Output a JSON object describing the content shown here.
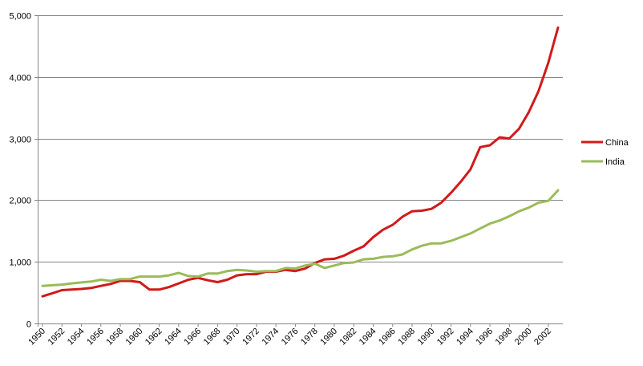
{
  "chart_data": {
    "type": "line",
    "title": "",
    "xlabel": "",
    "ylabel": "",
    "ylim": [
      0,
      5000
    ],
    "y_ticks": [
      0,
      1000,
      2000,
      3000,
      4000,
      5000
    ],
    "y_tick_labels": [
      "0",
      "1,000",
      "2,000",
      "3,000",
      "4,000",
      "5,000"
    ],
    "x_tick_labels": [
      "1950",
      "1952",
      "1954",
      "1956",
      "1958",
      "1960",
      "1962",
      "1964",
      "1966",
      "1968",
      "1970",
      "1972",
      "1974",
      "1976",
      "1978",
      "1980",
      "1982",
      "1984",
      "1986",
      "1988",
      "1990",
      "1992",
      "1994",
      "1996",
      "1998",
      "2000",
      "2002"
    ],
    "grid": "horizontal",
    "legend_position": "right",
    "x": [
      1950,
      1951,
      1952,
      1953,
      1954,
      1955,
      1956,
      1957,
      1958,
      1959,
      1960,
      1961,
      1962,
      1963,
      1964,
      1965,
      1966,
      1967,
      1968,
      1969,
      1970,
      1971,
      1972,
      1973,
      1974,
      1975,
      1976,
      1977,
      1978,
      1979,
      1980,
      1981,
      1982,
      1983,
      1984,
      1985,
      1986,
      1987,
      1988,
      1989,
      1990,
      1991,
      1992,
      1993,
      1994,
      1995,
      1996,
      1997,
      1998,
      1999,
      2000,
      2001,
      2002,
      2003
    ],
    "series": [
      {
        "name": "China",
        "color": "#d11a1a",
        "values": [
          440,
          490,
          540,
          550,
          560,
          575,
          610,
          640,
          690,
          690,
          670,
          550,
          550,
          590,
          650,
          710,
          740,
          700,
          670,
          710,
          780,
          800,
          800,
          840,
          840,
          870,
          850,
          890,
          980,
          1040,
          1050,
          1100,
          1180,
          1250,
          1400,
          1520,
          1600,
          1730,
          1820,
          1830,
          1860,
          1960,
          2120,
          2300,
          2500,
          2860,
          2890,
          3020,
          3000,
          3160,
          3430,
          3770,
          4230,
          4800
        ]
      },
      {
        "name": "India",
        "color": "#9bbb59",
        "values": [
          610,
          620,
          630,
          650,
          665,
          680,
          710,
          690,
          720,
          720,
          760,
          760,
          760,
          780,
          820,
          770,
          760,
          810,
          810,
          850,
          870,
          860,
          840,
          850,
          850,
          900,
          890,
          940,
          970,
          900,
          940,
          980,
          990,
          1040,
          1050,
          1080,
          1090,
          1120,
          1200,
          1260,
          1300,
          1300,
          1340,
          1400,
          1460,
          1540,
          1620,
          1670,
          1740,
          1820,
          1880,
          1960,
          1990,
          2160
        ]
      }
    ]
  }
}
